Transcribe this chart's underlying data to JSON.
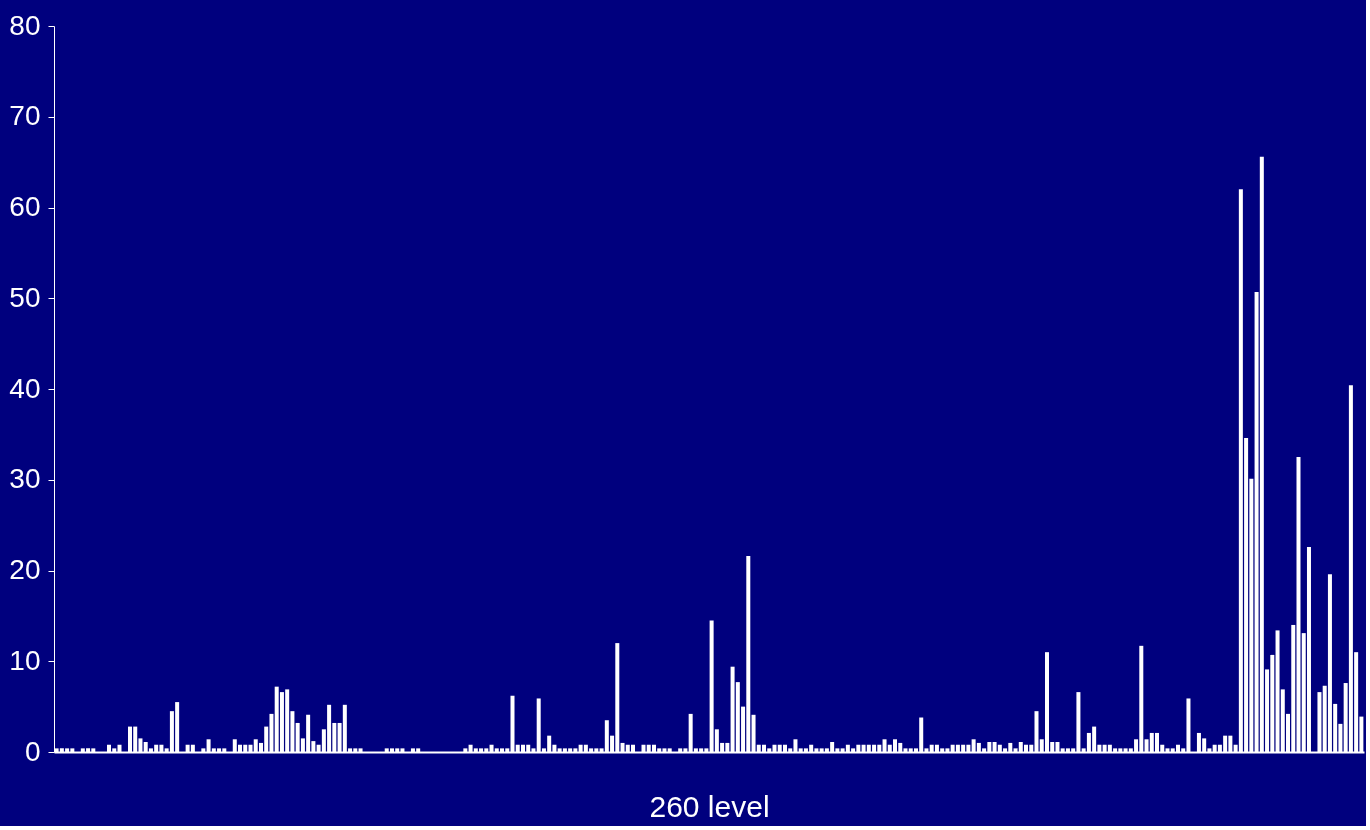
{
  "chart_data": {
    "type": "bar",
    "xlabel": "260 level",
    "categories": [
      null,
      null,
      null,
      null,
      null,
      null,
      null,
      null,
      null,
      null,
      null,
      null,
      null,
      null,
      null,
      null,
      null,
      null,
      null,
      null,
      null,
      null,
      null,
      null,
      null,
      null,
      null,
      null,
      null,
      null,
      null,
      null,
      null,
      null,
      null,
      null,
      null,
      null,
      null,
      null,
      null,
      null,
      null,
      null,
      null,
      null,
      null,
      null,
      null,
      null,
      null,
      null,
      null,
      null,
      null,
      null,
      null,
      null,
      null,
      null,
      null,
      null,
      null,
      null,
      null,
      null,
      null,
      null,
      null,
      null,
      null,
      null,
      null,
      null,
      null,
      null,
      null,
      null,
      null,
      null,
      null,
      null,
      null,
      null,
      null,
      null,
      null,
      null,
      null,
      null,
      null,
      null,
      null,
      null,
      null,
      null,
      null,
      null,
      null,
      null,
      null,
      null,
      null,
      null,
      null,
      null,
      null,
      null,
      null,
      null,
      null,
      null,
      null,
      null,
      null,
      null,
      null,
      null,
      null,
      null,
      null,
      null,
      null,
      null,
      null,
      null,
      null,
      null,
      null,
      null,
      null,
      null,
      null,
      null,
      null,
      null,
      null,
      null,
      null,
      null,
      null,
      null,
      null,
      null,
      null,
      null,
      null,
      null,
      null,
      null,
      null,
      null,
      null,
      null,
      null,
      null,
      null,
      null,
      null,
      null,
      null,
      null,
      null,
      null,
      null,
      null,
      null,
      null,
      null,
      null,
      null,
      null,
      null,
      null,
      null,
      null,
      null,
      null,
      null,
      null,
      null,
      null,
      null,
      null,
      null,
      null,
      null,
      null,
      null,
      null,
      null,
      null,
      null,
      null,
      null,
      null,
      null,
      null,
      null,
      null,
      null,
      null,
      null,
      null,
      null,
      null,
      null,
      null,
      null,
      null,
      null,
      null,
      null,
      null,
      null,
      null,
      null,
      null,
      null,
      null,
      null,
      null,
      null,
      null,
      null,
      null,
      null,
      null,
      null,
      null,
      null,
      null,
      null,
      null,
      null,
      null,
      null,
      null,
      null,
      null,
      null,
      null,
      null,
      null,
      null,
      null,
      null,
      null,
      null,
      null
    ],
    "values": [
      0.4,
      0.4,
      0.4,
      0.4,
      0,
      0.4,
      0.4,
      0.4,
      0,
      0,
      0.8,
      0.4,
      0.8,
      0,
      2.8,
      2.8,
      1.5,
      1.1,
      0.4,
      0.8,
      0.8,
      0.4,
      4.5,
      5.5,
      0,
      0.8,
      0.8,
      0,
      0.4,
      1.4,
      0.4,
      0.4,
      0.4,
      0,
      1.4,
      0.8,
      0.8,
      0.8,
      1.4,
      1.0,
      2.8,
      4.2,
      7.2,
      6.6,
      6.9,
      4.5,
      3.2,
      1.5,
      4.1,
      1.2,
      0.8,
      2.5,
      5.2,
      3.2,
      3.2,
      5.2,
      0.4,
      0.4,
      0.4,
      0,
      0,
      0,
      0,
      0.4,
      0.4,
      0.4,
      0.4,
      0,
      0.4,
      0.4,
      0,
      0,
      0,
      0,
      0,
      0,
      0,
      0,
      0.4,
      0.8,
      0.4,
      0.4,
      0.4,
      0.8,
      0.4,
      0.4,
      0.4,
      6.2,
      0.8,
      0.8,
      0.8,
      0.4,
      5.9,
      0.4,
      1.8,
      0.8,
      0.4,
      0.4,
      0.4,
      0.4,
      0.8,
      0.8,
      0.4,
      0.4,
      0.4,
      3.5,
      1.8,
      12.0,
      1.0,
      0.8,
      0.8,
      0,
      0.8,
      0.8,
      0.8,
      0.4,
      0.4,
      0.4,
      0,
      0.4,
      0.4,
      4.2,
      0.4,
      0.4,
      0.4,
      14.5,
      2.5,
      1.0,
      1.0,
      9.4,
      7.7,
      5.0,
      21.6,
      4.1,
      0.8,
      0.8,
      0.4,
      0.8,
      0.8,
      0.8,
      0.4,
      1.4,
      0.4,
      0.4,
      0.8,
      0.4,
      0.4,
      0.4,
      1.1,
      0.4,
      0.4,
      0.8,
      0.4,
      0.8,
      0.8,
      0.8,
      0.8,
      0.8,
      1.4,
      0.8,
      1.4,
      1.0,
      0.4,
      0.4,
      0.4,
      3.8,
      0.4,
      0.8,
      0.8,
      0.4,
      0.4,
      0.8,
      0.8,
      0.8,
      0.8,
      1.4,
      1.0,
      0.4,
      1.1,
      1.1,
      0.8,
      0.4,
      1.0,
      0.4,
      1.1,
      0.8,
      0.8,
      4.5,
      1.4,
      11.0,
      1.1,
      1.1,
      0.4,
      0.4,
      0.4,
      6.6,
      0.4,
      2.1,
      2.8,
      0.8,
      0.8,
      0.8,
      0.4,
      0.4,
      0.4,
      0.4,
      1.4,
      11.7,
      1.4,
      2.1,
      2.1,
      0.8,
      0.4,
      0.4,
      0.8,
      0.4,
      5.9,
      0,
      2.1,
      1.5,
      0.4,
      0.8,
      0.8,
      1.8,
      1.8,
      0.8,
      62,
      34.6,
      30.1,
      50.7,
      65.6,
      9.1,
      10.7,
      13.4,
      6.9,
      4.2,
      14.0,
      32.5,
      13.1,
      22.6,
      0,
      6.6,
      7.3,
      19.6,
      5.3,
      3.1,
      7.6,
      40.4,
      11.0,
      3.9
    ],
    "color": "#ffffff",
    "ylim": [
      0,
      80
    ],
    "yticks": [
      0,
      10,
      20,
      30,
      40,
      50,
      60,
      70,
      80
    ],
    "grid": false,
    "tick_labels": "y"
  }
}
